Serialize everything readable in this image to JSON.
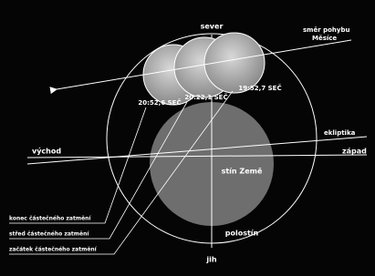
{
  "labels": {
    "north": "sever",
    "south": "jih",
    "east": "východ",
    "west": "západ",
    "ecliptic": "ekliptika",
    "moon_direction": [
      "směr pohybu",
      "Měsíce"
    ],
    "umbra": "stín Země",
    "penumbra": "polostín"
  },
  "times": [
    "20:52,6 SEČ",
    "20:22,1 SEČ",
    "19:52,7 SEČ"
  ],
  "legend": [
    "konec částečného zatmění",
    "střed částečného zatmění",
    "začátek částečného zatmění"
  ]
}
